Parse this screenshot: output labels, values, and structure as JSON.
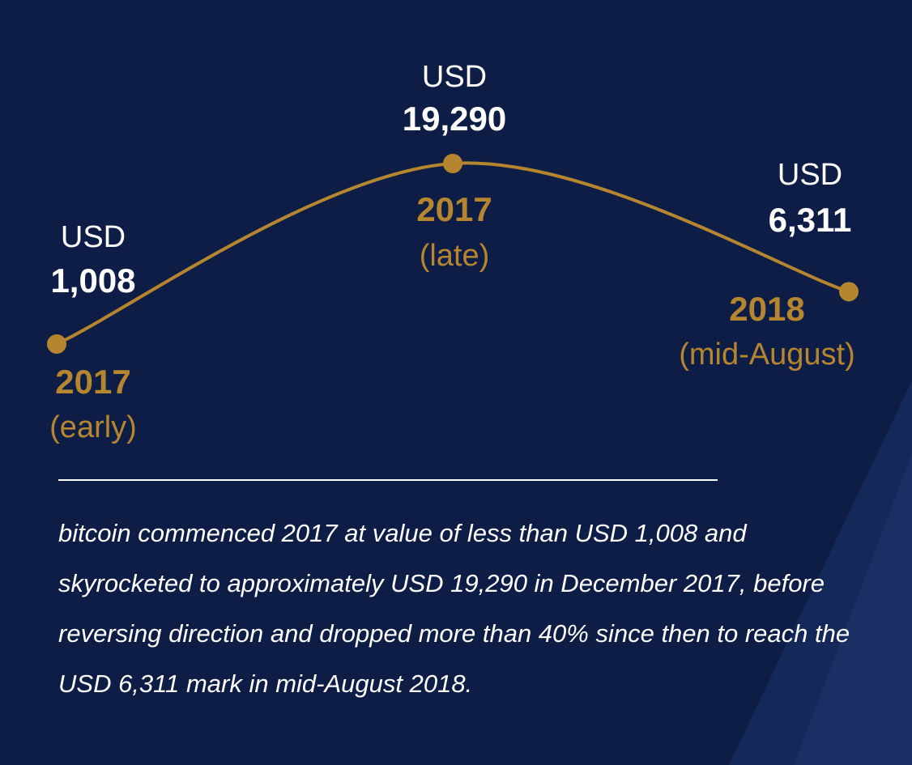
{
  "chart_data": {
    "type": "line",
    "categories": [
      "2017",
      "2017",
      "2018"
    ],
    "category_notes": [
      "(early)",
      "(late)",
      "(mid-August)"
    ],
    "series": [
      {
        "name": "bitcoin",
        "color": "#b5862f",
        "values": [
          1008,
          19290,
          6311
        ],
        "value_labels": [
          "1,008",
          "19,290",
          "6,311"
        ]
      }
    ],
    "value_unit": "USD",
    "caption": "bitcoin commenced 2017 at value of less than USD 1,008 and skyrocketed to approximately USD 19,290 in December 2017, before reversing direction and dropped more than 40% since then to reach the USD 6,311 mark in mid-August 2018."
  }
}
